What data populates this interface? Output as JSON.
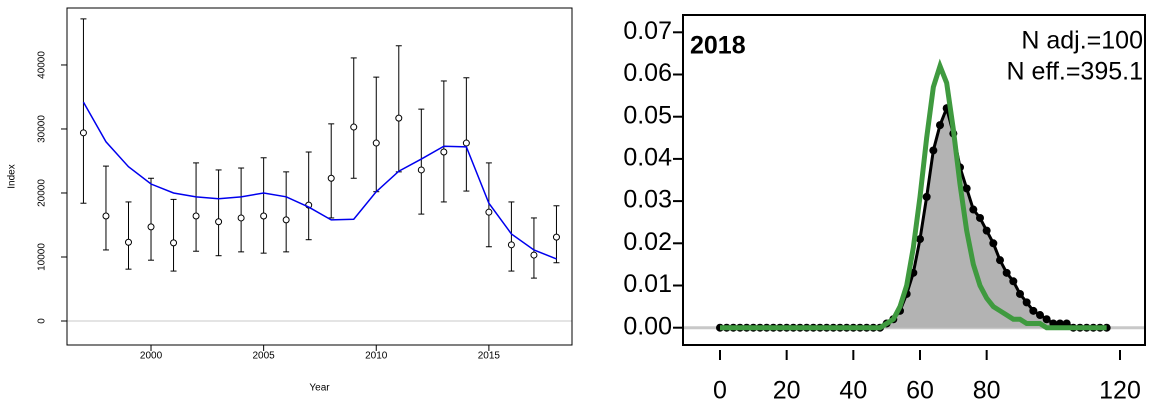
{
  "chart_data": [
    {
      "type": "line",
      "xlabel": "Year",
      "ylabel": "Index",
      "x": [
        1997,
        1998,
        1999,
        2000,
        2001,
        2002,
        2003,
        2004,
        2005,
        2006,
        2007,
        2008,
        2009,
        2010,
        2011,
        2012,
        2013,
        2014,
        2015,
        2016,
        2017,
        2018
      ],
      "series": [
        {
          "color": "#000000",
          "marker": "circle",
          "values": [
            29400,
            16400,
            12300,
            14700,
            12200,
            16400,
            15500,
            16100,
            16400,
            15800,
            18100,
            22300,
            30300,
            27800,
            31700,
            23600,
            26400,
            27800,
            17000,
            11900,
            10300,
            13100
          ],
          "lower": [
            18400,
            11100,
            8100,
            9500,
            7800,
            10900,
            10200,
            10800,
            10600,
            10800,
            12700,
            16100,
            22300,
            20200,
            23300,
            16700,
            18600,
            20300,
            11600,
            7800,
            6700,
            9100
          ],
          "upper": [
            47200,
            24200,
            18600,
            22300,
            19000,
            24700,
            23600,
            23900,
            25500,
            23300,
            26400,
            30800,
            41100,
            38100,
            43000,
            33100,
            37500,
            38000,
            24700,
            18600,
            16100,
            18000
          ]
        },
        {
          "color": "#0000ee",
          "values": [
            34200,
            28000,
            24100,
            21400,
            20000,
            19400,
            19100,
            19400,
            20000,
            19400,
            17800,
            15800,
            15900,
            20200,
            23400,
            25300,
            27300,
            27200,
            18400,
            13600,
            11100,
            9700
          ]
        }
      ],
      "xlim": [
        1996.27,
        2018.69
      ],
      "ylim": [
        -3750,
        48900
      ],
      "xticks": [
        2000,
        2005,
        2010,
        2015
      ],
      "yticks": [
        0,
        10000,
        20000,
        30000,
        40000
      ],
      "hline": 0
    },
    {
      "type": "area",
      "annotations": [
        "2018",
        "N adj.=100",
        "N eff.=395.1"
      ],
      "x": [
        0,
        2,
        4,
        6,
        8,
        10,
        12,
        14,
        16,
        18,
        20,
        22,
        24,
        26,
        28,
        30,
        32,
        34,
        36,
        38,
        40,
        42,
        44,
        46,
        48,
        50,
        52,
        54,
        56,
        58,
        60,
        62,
        64,
        66,
        68,
        70,
        72,
        74,
        76,
        78,
        80,
        82,
        84,
        86,
        88,
        90,
        92,
        94,
        96,
        98,
        100,
        102,
        104,
        106,
        108,
        110,
        112,
        114,
        116
      ],
      "series": [
        {
          "color": "#000000",
          "fill": "#b3b3b3",
          "marker": "circle",
          "values": [
            0,
            0,
            0,
            0,
            0,
            0,
            0,
            0,
            0,
            0,
            0,
            0,
            0,
            0,
            0,
            0,
            0,
            0,
            0,
            0,
            0,
            0,
            0,
            0,
            0,
            0.001,
            0.002,
            0.004,
            0.008,
            0.013,
            0.021,
            0.031,
            0.042,
            0.048,
            0.052,
            0.046,
            0.038,
            0.033,
            0.028,
            0.026,
            0.023,
            0.02,
            0.016,
            0.013,
            0.011,
            0.008,
            0.006,
            0.004,
            0.003,
            0.002,
            0.001,
            0.001,
            0.001,
            0,
            0,
            0,
            0,
            0,
            0
          ]
        },
        {
          "color": "#3f9a3f",
          "values": [
            0,
            0,
            0,
            0,
            0,
            0,
            0,
            0,
            0,
            0,
            0,
            0,
            0,
            0,
            0,
            0,
            0,
            0,
            0,
            0,
            0,
            0,
            0,
            0,
            0,
            0.001,
            0.002,
            0.005,
            0.01,
            0.019,
            0.031,
            0.045,
            0.057,
            0.062,
            0.058,
            0.047,
            0.034,
            0.023,
            0.015,
            0.01,
            0.007,
            0.005,
            0.004,
            0.003,
            0.002,
            0.002,
            0.001,
            0.001,
            0.001,
            0,
            0,
            0,
            0,
            0,
            0,
            0,
            0,
            0,
            0
          ]
        }
      ],
      "xlim": [
        -11.1,
        127.5
      ],
      "ylim": [
        -0.0041,
        0.0741
      ],
      "xticks": [
        0,
        20,
        40,
        60,
        80,
        120
      ],
      "yticks": [
        {
          "value": 0,
          "label": "0.00"
        },
        {
          "value": 0.01,
          "label": "0.01"
        },
        {
          "value": 0.02,
          "label": "0.02"
        },
        {
          "value": 0.03,
          "label": "0.03"
        },
        {
          "value": 0.04,
          "label": "0.04"
        },
        {
          "value": 0.05,
          "label": "0.05"
        },
        {
          "value": 0.06,
          "label": "0.06"
        },
        {
          "value": 0.07,
          "label": "0.07"
        }
      ],
      "hline": 0
    }
  ]
}
